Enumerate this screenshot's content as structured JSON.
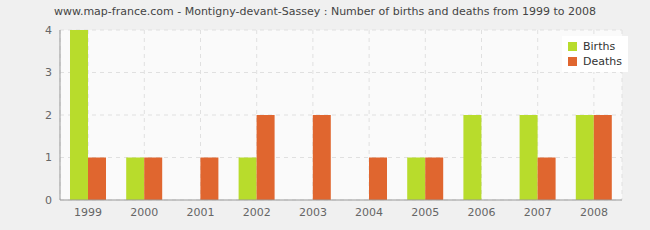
{
  "chart_data": {
    "type": "bar",
    "title": "www.map-france.com - Montigny-devant-Sassey : Number of births and deaths from 1999 to 2008",
    "categories": [
      "1999",
      "2000",
      "2001",
      "2002",
      "2003",
      "2004",
      "2005",
      "2006",
      "2007",
      "2008"
    ],
    "series": [
      {
        "name": "Births",
        "color": "#b8dc2c",
        "values": [
          4,
          1,
          0,
          1,
          0,
          0,
          1,
          2,
          2,
          2
        ]
      },
      {
        "name": "Deaths",
        "color": "#e0662f",
        "values": [
          1,
          1,
          1,
          2,
          2,
          1,
          1,
          0,
          1,
          2
        ]
      }
    ],
    "ylim": [
      0,
      4
    ],
    "yticks": [
      0,
      1,
      2,
      3,
      4
    ],
    "grid": true,
    "legend": "upper right"
  }
}
